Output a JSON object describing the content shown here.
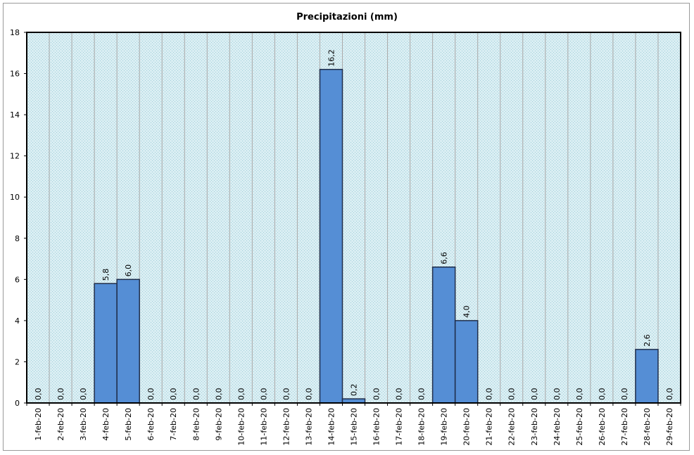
{
  "chart_data": {
    "type": "bar",
    "title": "Precipitazioni (mm)",
    "xlabel": "",
    "ylabel": "",
    "ylim": [
      0,
      18
    ],
    "yticks": [
      "0",
      "2",
      "4",
      "6",
      "8",
      "10",
      "12",
      "14",
      "16",
      "18"
    ],
    "grid": true,
    "legend": "none",
    "bar_color": "#558ED5",
    "bar_border_color": "#1F2D4A",
    "plot_background": "#DAEEF3",
    "categories": [
      "1-feb-20",
      "2-feb-20",
      "3-feb-20",
      "4-feb-20",
      "5-feb-20",
      "6-feb-20",
      "7-feb-20",
      "8-feb-20",
      "9-feb-20",
      "10-feb-20",
      "11-feb-20",
      "12-feb-20",
      "13-feb-20",
      "14-feb-20",
      "15-feb-20",
      "16-feb-20",
      "17-feb-20",
      "18-feb-20",
      "19-feb-20",
      "20-feb-20",
      "21-feb-20",
      "22-feb-20",
      "23-feb-20",
      "24-feb-20",
      "25-feb-20",
      "26-feb-20",
      "27-feb-20",
      "28-feb-20",
      "29-feb-20"
    ],
    "values": [
      0.0,
      0.0,
      0.0,
      5.8,
      6.0,
      0.0,
      0.0,
      0.0,
      0.0,
      0.0,
      0.0,
      0.0,
      0.0,
      16.2,
      0.2,
      0.0,
      0.0,
      0.0,
      6.6,
      4.0,
      0.0,
      0.0,
      0.0,
      0.0,
      0.0,
      0.0,
      0.0,
      2.6,
      0.0
    ],
    "data_labels": [
      "0,0",
      "0,0",
      "0,0",
      "5,8",
      "6,0",
      "0,0",
      "0,0",
      "0,0",
      "0,0",
      "0,0",
      "0,0",
      "0,0",
      "0,0",
      "16,2",
      "0,2",
      "0,0",
      "0,0",
      "0,0",
      "6,6",
      "4,0",
      "0,0",
      "0,0",
      "0,0",
      "0,0",
      "0,0",
      "0,0",
      "0,0",
      "2,6",
      "0,0"
    ]
  }
}
